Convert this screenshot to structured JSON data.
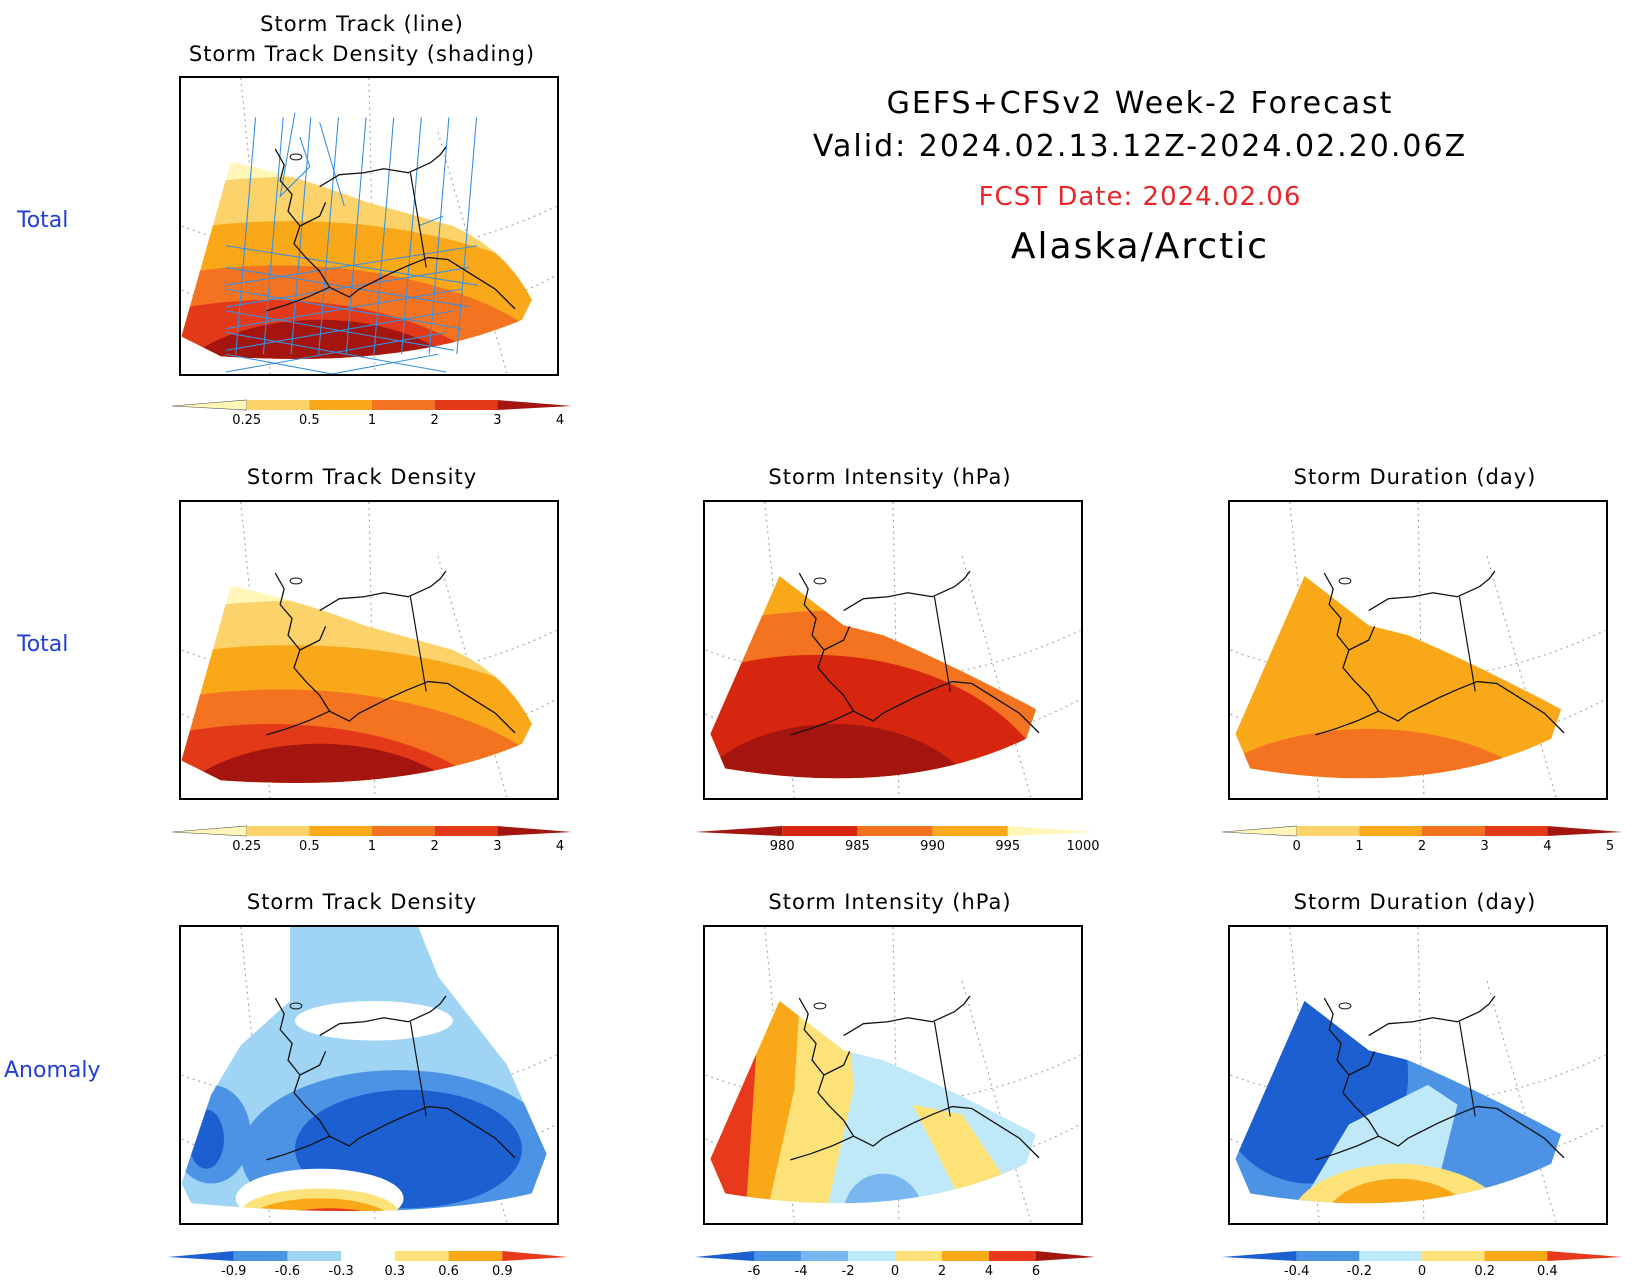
{
  "header": {
    "line1": "GEFS+CFSv2 Week-2 Forecast",
    "line2": "Valid: 2024.02.13.12Z-2024.02.20.06Z",
    "fcst": "FCST Date: 2024.02.06",
    "region": "Alaska/Arctic"
  },
  "row_labels": [
    "Total",
    "Total",
    "Anomaly"
  ],
  "panels": [
    {
      "title": "Storm Track (line)",
      "title2": "Storm Track Density (shading)",
      "field": "density",
      "tracks": true,
      "colorbar": {
        "labels": [
          "0.25",
          "0.5",
          "1",
          "2",
          "3",
          "4"
        ],
        "colors": [
          "#fff6b8",
          "#fcd36b",
          "#f9a81a",
          "#f37320",
          "#e23a18",
          "#a3150e"
        ]
      }
    },
    {
      "title": "Storm Track Density",
      "field": "density",
      "colorbar": {
        "labels": [
          "0.25",
          "0.5",
          "1",
          "2",
          "3",
          "4"
        ],
        "colors": [
          "#fff6b8",
          "#fcd36b",
          "#f9a81a",
          "#f37320",
          "#e23a18",
          "#a3150e"
        ]
      }
    },
    {
      "title": "Storm Intensity (hPa)",
      "field": "intensity",
      "colorbar": {
        "labels": [
          "980",
          "985",
          "990",
          "995",
          "1000"
        ],
        "colors": [
          "#a3150e",
          "#d7260f",
          "#f37320",
          "#f9a81a",
          "#fff6b8"
        ]
      }
    },
    {
      "title": "Storm Duration (day)",
      "field": "duration",
      "colorbar": {
        "labels": [
          "0",
          "1",
          "2",
          "3",
          "4",
          "5"
        ],
        "colors": [
          "#fff6b8",
          "#fcd36b",
          "#f9a81a",
          "#f37320",
          "#e23a18",
          "#a3150e"
        ]
      }
    },
    {
      "title": "Storm Track Density",
      "field": "anom_density",
      "colorbar": {
        "labels": [
          "-0.9",
          "-0.6",
          "-0.3",
          "0.3",
          "0.6",
          "0.9"
        ],
        "colors": [
          "#1c5fd1",
          "#4c93e6",
          "#9fd4f5",
          "#ffffff",
          "#fde27a",
          "#f9a81a",
          "#e8391c"
        ]
      }
    },
    {
      "title": "Storm Intensity (hPa)",
      "field": "anom_intensity",
      "colorbar": {
        "labels": [
          "-6",
          "-4",
          "-2",
          "0",
          "2",
          "4",
          "6"
        ],
        "colors": [
          "#1c5fd1",
          "#4c93e6",
          "#7ab6f0",
          "#bfe8f8",
          "#fde27a",
          "#f9a81a",
          "#e8391c",
          "#a3150e"
        ]
      }
    },
    {
      "title": "Storm Duration (day)",
      "field": "anom_duration",
      "colorbar": {
        "labels": [
          "-0.4",
          "-0.2",
          "0",
          "0.2",
          "0.4"
        ],
        "colors": [
          "#1c5fd1",
          "#4c93e6",
          "#bfe8f8",
          "#fde27a",
          "#f9a81a",
          "#e8391c"
        ]
      }
    }
  ]
}
